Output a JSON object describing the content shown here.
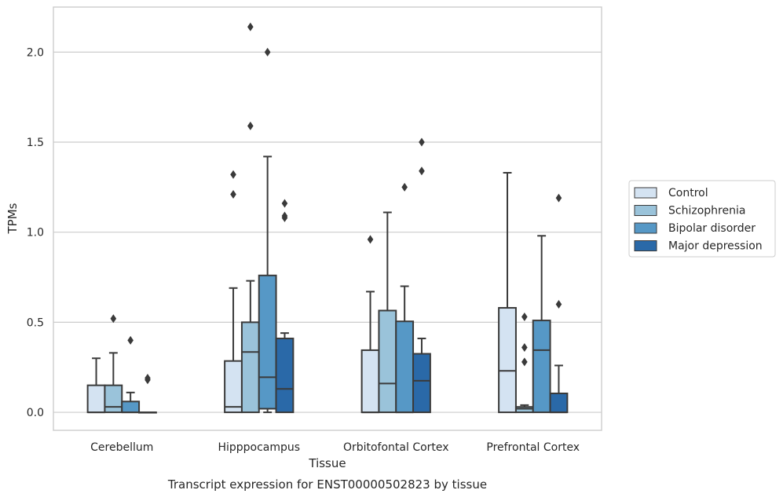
{
  "chart_data": {
    "type": "box",
    "xlabel": "Tissue",
    "ylabel": "TPMs",
    "caption": "Transcript expression for ENST00000502823 by tissue",
    "ylim": [
      -0.1,
      2.25
    ],
    "yticks": [
      0.0,
      0.5,
      1.0,
      1.5,
      2.0
    ],
    "ytick_labels": [
      "0.0",
      "0.5",
      "1.0",
      "1.5",
      "2.0"
    ],
    "grid": true,
    "legend_position": "right",
    "categories": [
      "Cerebellum",
      "Hipppocampus",
      "Orbitofontal Cortex",
      "Prefrontal Cortex"
    ],
    "series": [
      {
        "name": "Control",
        "color": "#d4e3f2",
        "boxes": [
          {
            "q1": 0.0,
            "median": 0.0,
            "q3": 0.15,
            "whislo": 0.0,
            "whishi": 0.3,
            "fliers": []
          },
          {
            "q1": 0.0,
            "median": 0.03,
            "q3": 0.285,
            "whislo": 0.0,
            "whishi": 0.69,
            "fliers": [
              1.21,
              1.32
            ]
          },
          {
            "q1": 0.0,
            "median": 0.0,
            "q3": 0.345,
            "whislo": 0.0,
            "whishi": 0.67,
            "fliers": [
              0.96
            ]
          },
          {
            "q1": 0.0,
            "median": 0.23,
            "q3": 0.58,
            "whislo": 0.0,
            "whishi": 1.33,
            "fliers": []
          }
        ]
      },
      {
        "name": "Schizophrenia",
        "color": "#9ac3da",
        "boxes": [
          {
            "q1": 0.0,
            "median": 0.03,
            "q3": 0.15,
            "whislo": 0.0,
            "whishi": 0.33,
            "fliers": [
              0.52
            ]
          },
          {
            "q1": 0.0,
            "median": 0.335,
            "q3": 0.5,
            "whislo": 0.0,
            "whishi": 0.73,
            "fliers": [
              1.59,
              2.14
            ]
          },
          {
            "q1": 0.0,
            "median": 0.16,
            "q3": 0.565,
            "whislo": 0.0,
            "whishi": 1.11,
            "fliers": []
          },
          {
            "q1": 0.0,
            "median": 0.02,
            "q3": 0.03,
            "whislo": 0.0,
            "whishi": 0.04,
            "fliers": [
              0.28,
              0.36,
              0.53
            ]
          }
        ]
      },
      {
        "name": "Bipolar disorder",
        "color": "#5698c6",
        "boxes": [
          {
            "q1": 0.0,
            "median": 0.0,
            "q3": 0.06,
            "whislo": 0.0,
            "whishi": 0.11,
            "fliers": [
              0.4
            ]
          },
          {
            "q1": 0.02,
            "median": 0.195,
            "q3": 0.76,
            "whislo": 0.0,
            "whishi": 1.42,
            "fliers": [
              2.0
            ]
          },
          {
            "q1": 0.0,
            "median": 0.0,
            "q3": 0.505,
            "whislo": 0.0,
            "whishi": 0.7,
            "fliers": [
              1.25
            ]
          },
          {
            "q1": 0.0,
            "median": 0.345,
            "q3": 0.51,
            "whislo": 0.0,
            "whishi": 0.98,
            "fliers": []
          }
        ]
      },
      {
        "name": "Major depression",
        "color": "#2a69a8",
        "boxes": [
          {
            "q1": 0.0,
            "median": 0.0,
            "q3": 0.0,
            "whislo": 0.0,
            "whishi": 0.0,
            "fliers": [
              0.18,
              0.19
            ]
          },
          {
            "q1": 0.0,
            "median": 0.13,
            "q3": 0.41,
            "whislo": 0.0,
            "whishi": 0.44,
            "fliers": [
              1.08,
              1.09,
              1.16
            ]
          },
          {
            "q1": 0.0,
            "median": 0.175,
            "q3": 0.325,
            "whislo": 0.0,
            "whishi": 0.41,
            "fliers": [
              1.34,
              1.5
            ]
          },
          {
            "q1": 0.0,
            "median": 0.0,
            "q3": 0.105,
            "whislo": 0.0,
            "whishi": 0.26,
            "fliers": [
              0.6,
              1.19
            ]
          }
        ]
      }
    ]
  }
}
